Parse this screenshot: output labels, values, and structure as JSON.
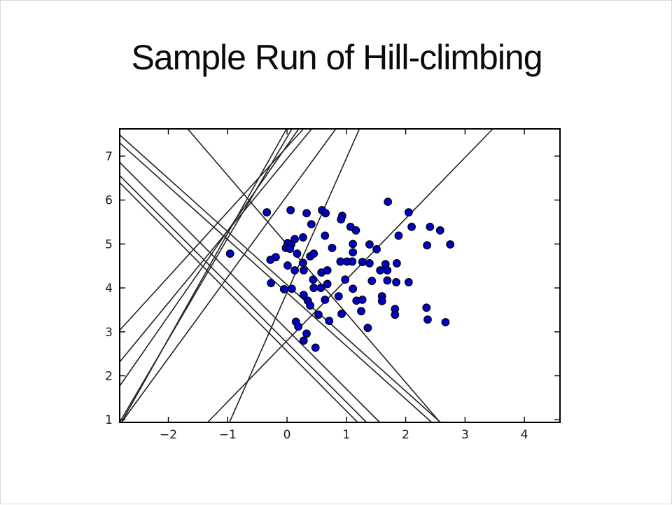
{
  "slide": {
    "title": "Sample Run of Hill-climbing"
  },
  "chart_data": {
    "type": "scatter",
    "title": "Sample Run of Hill-climbing",
    "xlabel": "",
    "ylabel": "",
    "grid": false,
    "legend": "none",
    "x_range": [
      -2.82,
      4.6
    ],
    "y_range": [
      0.94,
      7.62
    ],
    "x_ticks": [
      -2,
      -1,
      0,
      1,
      2,
      3,
      4
    ],
    "x_tick_labels": [
      "−2",
      "−1",
      "0",
      "1",
      "2",
      "3",
      "4"
    ],
    "y_ticks": [
      1,
      2,
      3,
      4,
      5,
      6,
      7
    ],
    "y_tick_labels": [
      "1",
      "2",
      "3",
      "4",
      "5",
      "6",
      "7"
    ],
    "marker_color": "#0000c4",
    "marker_edge_color": "#000000",
    "line_color": "#222222",
    "frame_color": "#000000",
    "points": [
      [
        0.06,
        5.77
      ],
      [
        0.33,
        5.7
      ],
      [
        0.59,
        5.77
      ],
      [
        0.65,
        5.7
      ],
      [
        0.93,
        5.64
      ],
      [
        0.91,
        5.56
      ],
      [
        0.41,
        5.45
      ],
      [
        1.07,
        5.39
      ],
      [
        1.16,
        5.31
      ],
      [
        0.64,
        5.19
      ],
      [
        0.13,
        5.11
      ],
      [
        0.27,
        5.15
      ],
      [
        0.01,
        5.02
      ],
      [
        0.07,
        4.99
      ],
      [
        -0.02,
        4.91
      ],
      [
        0.05,
        4.89
      ],
      [
        0.76,
        4.91
      ],
      [
        1.11,
        5.0
      ],
      [
        1.39,
        4.99
      ],
      [
        0.17,
        4.78
      ],
      [
        -0.28,
        4.64
      ],
      [
        -0.19,
        4.7
      ],
      [
        0.39,
        4.72
      ],
      [
        0.45,
        4.78
      ],
      [
        1.11,
        4.81
      ],
      [
        0.9,
        4.6
      ],
      [
        1.01,
        4.6
      ],
      [
        1.1,
        4.6
      ],
      [
        0.27,
        4.57
      ],
      [
        0.01,
        4.51
      ],
      [
        1.27,
        4.59
      ],
      [
        1.39,
        4.56
      ],
      [
        0.13,
        4.4
      ],
      [
        0.28,
        4.4
      ],
      [
        0.58,
        4.35
      ],
      [
        0.68,
        4.4
      ],
      [
        1.7,
        5.96
      ],
      [
        2.05,
        5.72
      ],
      [
        2.1,
        5.39
      ],
      [
        2.41,
        5.39
      ],
      [
        2.58,
        5.31
      ],
      [
        1.88,
        5.19
      ],
      [
        2.36,
        4.97
      ],
      [
        2.75,
        4.99
      ],
      [
        1.51,
        4.88
      ],
      [
        1.66,
        4.54
      ],
      [
        1.85,
        4.56
      ],
      [
        1.57,
        4.4
      ],
      [
        1.69,
        4.4
      ],
      [
        -0.27,
        4.11
      ],
      [
        -0.05,
        3.97
      ],
      [
        0.08,
        3.98
      ],
      [
        0.44,
        4.19
      ],
      [
        0.45,
        4.0
      ],
      [
        0.57,
        4.0
      ],
      [
        0.68,
        4.09
      ],
      [
        0.28,
        3.84
      ],
      [
        0.35,
        3.71
      ],
      [
        0.39,
        3.6
      ],
      [
        0.64,
        3.73
      ],
      [
        0.87,
        3.81
      ],
      [
        0.98,
        4.19
      ],
      [
        1.11,
        3.98
      ],
      [
        1.17,
        3.71
      ],
      [
        1.27,
        3.73
      ],
      [
        0.53,
        3.39
      ],
      [
        0.92,
        3.41
      ],
      [
        0.71,
        3.25
      ],
      [
        0.15,
        3.23
      ],
      [
        0.19,
        3.12
      ],
      [
        0.33,
        2.96
      ],
      [
        0.28,
        2.8
      ],
      [
        0.48,
        2.64
      ],
      [
        1.25,
        3.47
      ],
      [
        1.36,
        3.09
      ],
      [
        1.69,
        4.17
      ],
      [
        1.84,
        4.13
      ],
      [
        2.05,
        4.13
      ],
      [
        1.43,
        4.16
      ],
      [
        1.6,
        3.81
      ],
      [
        1.6,
        3.7
      ],
      [
        1.82,
        3.52
      ],
      [
        1.82,
        3.39
      ],
      [
        2.35,
        3.55
      ],
      [
        2.37,
        3.28
      ],
      [
        2.67,
        3.22
      ],
      [
        -0.96,
        4.78
      ],
      [
        -0.34,
        5.72
      ]
    ],
    "hypothesis_lines": [
      {
        "m": -1.21,
        "b": 4.07
      },
      {
        "m": -1.21,
        "b": 3.89
      },
      {
        "m": -1.35,
        "b": 3.05
      },
      {
        "m": -1.35,
        "b": 2.75
      },
      {
        "m": -1.36,
        "b": 2.56
      },
      {
        "m": -1.57,
        "b": 4.99
      },
      {
        "m": 2.4,
        "b": 7.64
      },
      {
        "m": 2.3,
        "b": 7.43
      },
      {
        "m": 1.85,
        "b": 6.1
      },
      {
        "m": 1.94,
        "b": 7.24
      },
      {
        "m": 1.64,
        "b": 6.94
      },
      {
        "m": 3.05,
        "b": 3.9
      },
      {
        "m": 1.39,
        "b": 2.8
      },
      {
        "m": 1.48,
        "b": 7.21
      }
    ]
  }
}
